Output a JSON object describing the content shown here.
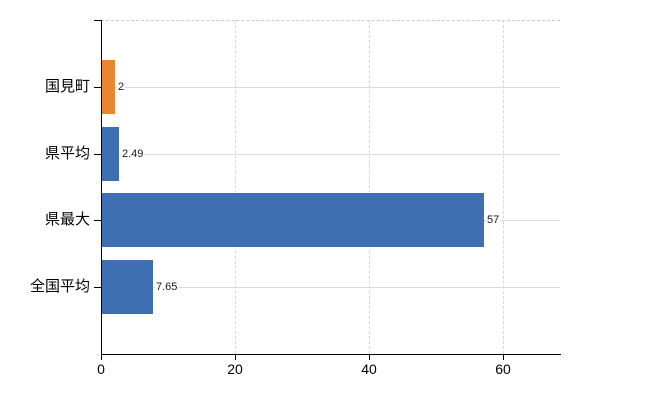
{
  "chart_data": {
    "type": "bar",
    "orientation": "horizontal",
    "title": "",
    "xlabel": "",
    "ylabel": "",
    "categories": [
      "国見町",
      "県平均",
      "県最大",
      "全国平均"
    ],
    "values": [
      2,
      2.49,
      57,
      7.65
    ],
    "value_labels": [
      "2",
      "2.49",
      "57",
      "7.65"
    ],
    "bar_colors": [
      "#ea8530",
      "#3e6fb2",
      "#3e6fb2",
      "#3e6fb2"
    ],
    "x_tick_labels": [
      "0",
      "20",
      "40",
      "60"
    ],
    "x_tick_values": [
      0,
      20,
      40,
      60
    ],
    "xlim": [
      0,
      68.5
    ],
    "grid": true,
    "legend": false,
    "colors": {
      "accent_orange": "#ea8530",
      "accent_blue": "#3e6fb2",
      "gridline": "#d9d9d9",
      "axis": "#000000",
      "background": "#ffffff"
    }
  }
}
